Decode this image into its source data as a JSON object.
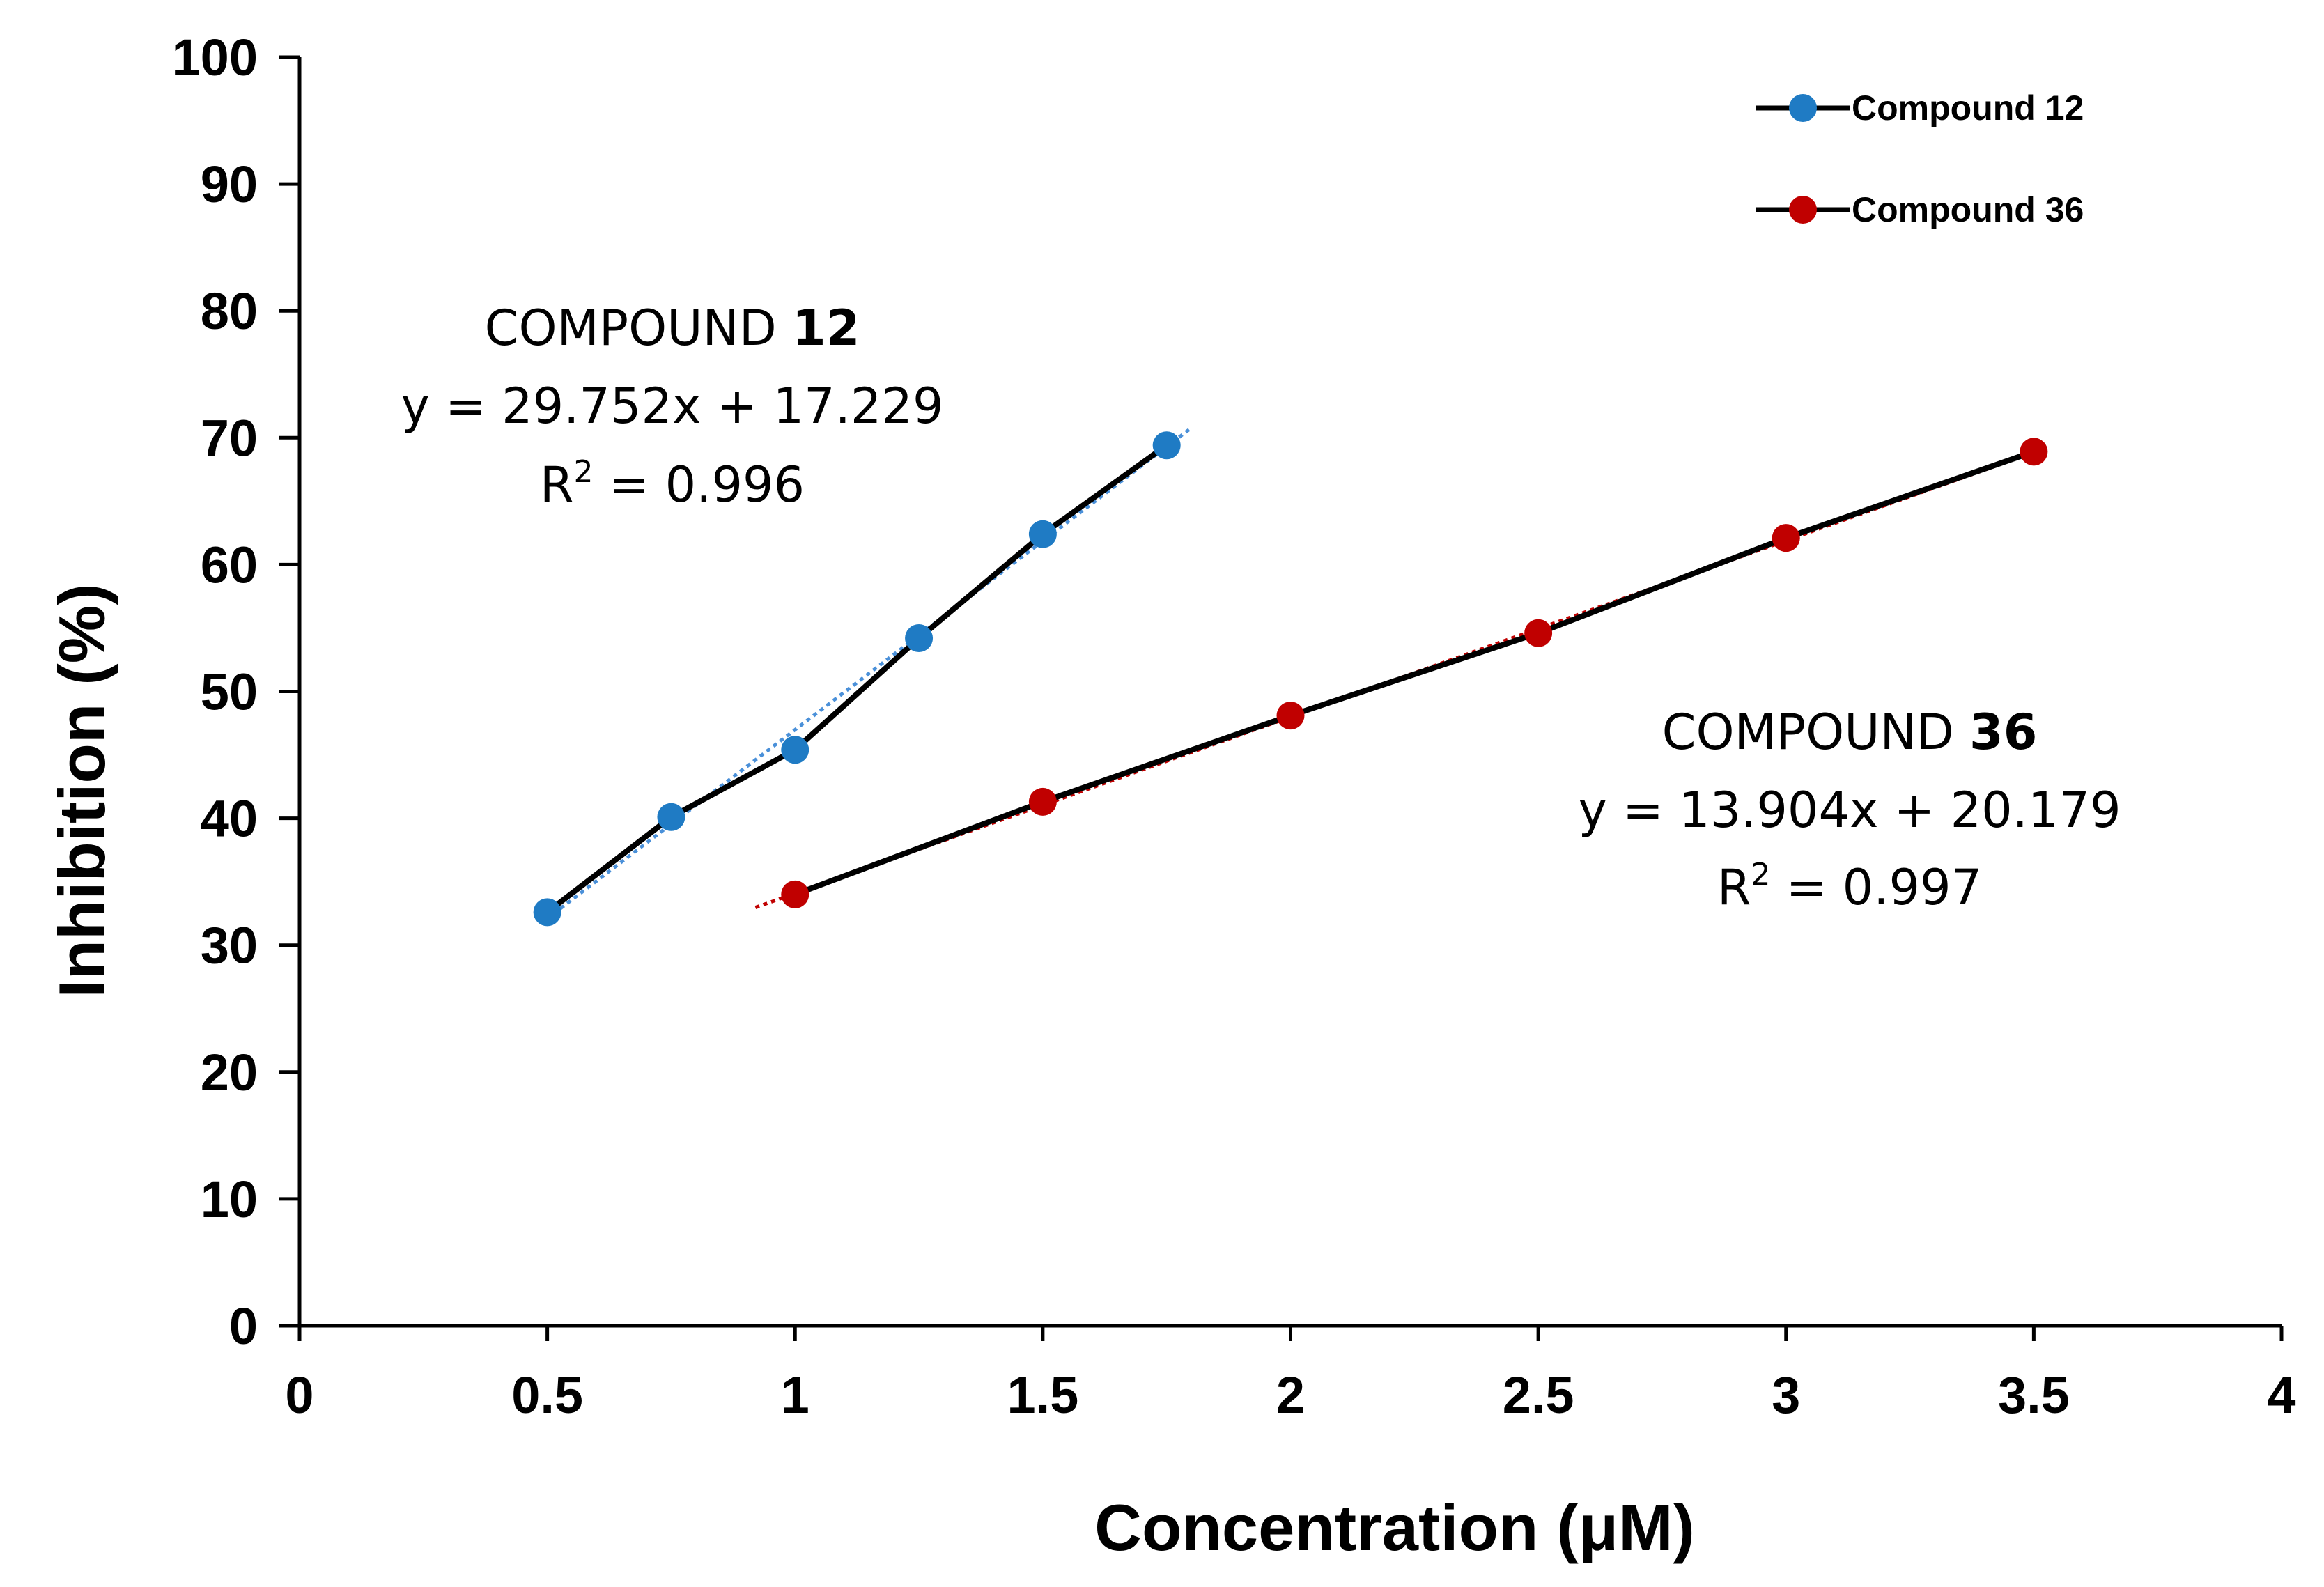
{
  "chart_data": {
    "type": "scatter",
    "xlabel": "Concentration (μM)",
    "ylabel": "Inhibition (%)",
    "xlim": [
      0,
      4
    ],
    "ylim": [
      0,
      100
    ],
    "x_ticks": [
      "0",
      "0.5",
      "1",
      "1.5",
      "2",
      "2.5",
      "3",
      "3.5",
      "4"
    ],
    "y_ticks": [
      "0",
      "10",
      "20",
      "30",
      "40",
      "50",
      "60",
      "70",
      "80",
      "90",
      "100"
    ],
    "x_tick_values": [
      0,
      0.5,
      1,
      1.5,
      2,
      2.5,
      3,
      3.5,
      4
    ],
    "y_tick_values": [
      0,
      10,
      20,
      30,
      40,
      50,
      60,
      70,
      80,
      90,
      100
    ],
    "legend_position": "top-right",
    "series": [
      {
        "name": "Compound 12",
        "color": "#1f7bc4",
        "trend_color": "#4a90d9",
        "x": [
          0.5,
          0.75,
          1.0,
          1.25,
          1.5,
          1.75
        ],
        "y": [
          32.6,
          40.1,
          45.4,
          54.2,
          62.4,
          69.4
        ],
        "trendline": {
          "slope": 29.752,
          "intercept": 17.229,
          "x_range": [
            0.5,
            1.8
          ]
        }
      },
      {
        "name": "Compound 36",
        "color": "#c00000",
        "trend_color": "#c00000",
        "x": [
          1.0,
          1.5,
          2.0,
          2.5,
          3.0,
          3.5
        ],
        "y": [
          34.0,
          41.3,
          48.1,
          54.6,
          62.1,
          68.9
        ],
        "trendline": {
          "slope": 13.904,
          "intercept": 20.179,
          "x_range": [
            0.92,
            3.5
          ]
        }
      }
    ],
    "annotations": [
      {
        "title_prefix": "COMPOUND ",
        "title_bold": "12",
        "equation": "y = 29.752x + 17.229",
        "r2_prefix": "R",
        "r2_sup": "2",
        "r2_value": " = 0.996"
      },
      {
        "title_prefix": "COMPOUND ",
        "title_bold": "36",
        "equation": "y = 13.904x + 20.179",
        "r2_prefix": "R",
        "r2_sup": "2",
        "r2_value": " = 0.997"
      }
    ]
  }
}
